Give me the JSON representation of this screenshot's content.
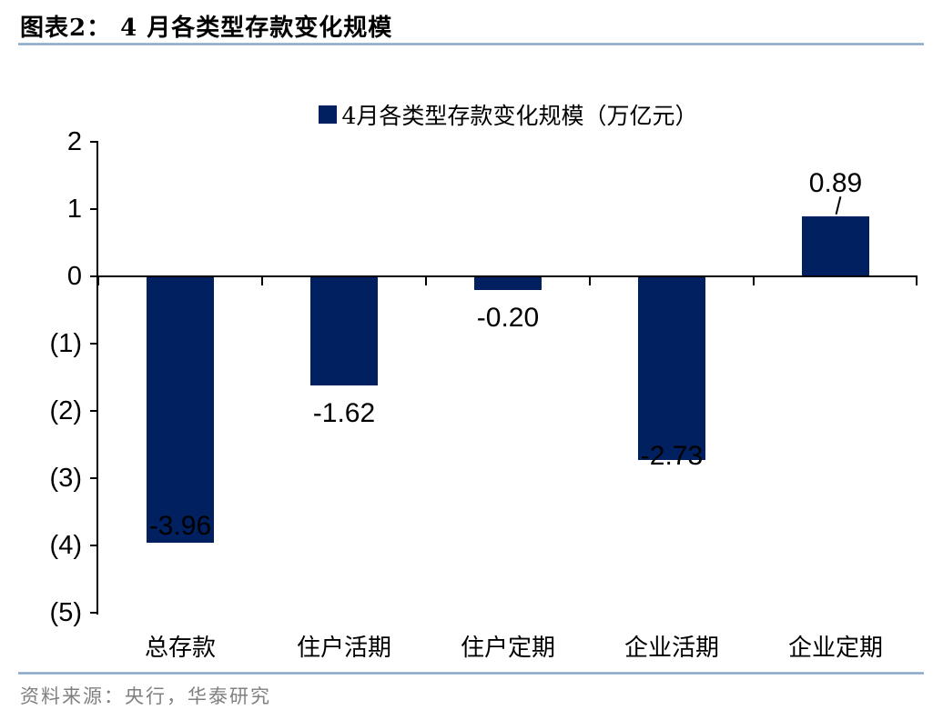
{
  "header": {
    "title": "图表2： 4 月各类型存款变化规模"
  },
  "footer": {
    "source": "资料来源：央行，华泰研究"
  },
  "colors": {
    "bar": "#002060",
    "rule": "#7E9BC0",
    "source_text": "#808080",
    "axis": "#000000"
  },
  "chart_data": {
    "type": "bar",
    "title": "",
    "legend": "4月各类型存款变化规模（万亿元）",
    "legend_position": "top-center",
    "unit": "万亿元",
    "grid": false,
    "categories": [
      "总存款",
      "住户活期",
      "住户定期",
      "企业活期",
      "企业定期"
    ],
    "values": [
      -3.96,
      -1.62,
      -0.2,
      -2.73,
      0.89
    ],
    "data_labels": [
      "-3.96",
      "-1.62",
      "-0.20",
      "-2.73",
      "0.89"
    ],
    "label_placement": [
      "inside-end",
      "outside-end",
      "outside-end",
      "straddle-end",
      "callout-above"
    ],
    "bar_color": "#002060",
    "xlabel": "",
    "ylabel": "",
    "ylim": [
      -5,
      2
    ],
    "y_ticks": [
      {
        "value": 2,
        "label": "2"
      },
      {
        "value": 1,
        "label": "1"
      },
      {
        "value": 0,
        "label": "0"
      },
      {
        "value": -1,
        "label": "(1)"
      },
      {
        "value": -2,
        "label": "(2)"
      },
      {
        "value": -3,
        "label": "(3)"
      },
      {
        "value": -4,
        "label": "(4)"
      },
      {
        "value": -5,
        "label": "(5)"
      }
    ]
  }
}
